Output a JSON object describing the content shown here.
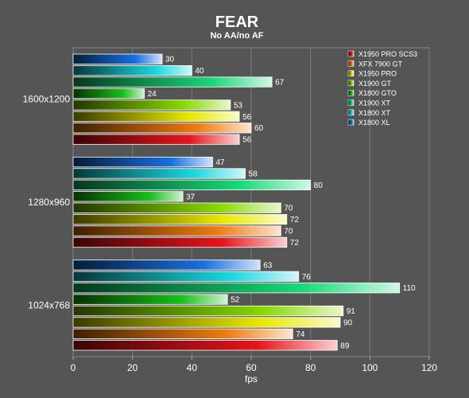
{
  "chart_data": {
    "type": "bar",
    "orientation": "horizontal",
    "title": "FEAR",
    "subtitle": "No AA/no AF",
    "xlabel": "fps",
    "ylabel": "",
    "xlim": [
      0,
      120
    ],
    "xticks": [
      0,
      20,
      40,
      60,
      80,
      100,
      120
    ],
    "grid": true,
    "legend_position": "top-right",
    "categories": [
      "1600x1200",
      "1280x960",
      "1024x768"
    ],
    "series": [
      {
        "name": "X1950 PRO SCS3",
        "color": "#e8141c",
        "values": [
          56,
          72,
          89
        ]
      },
      {
        "name": "XFX 7900 GT",
        "color": "#f07c10",
        "values": [
          60,
          70,
          74
        ]
      },
      {
        "name": "X1950 PRO",
        "color": "#e8e800",
        "values": [
          56,
          72,
          90
        ]
      },
      {
        "name": "X1900 GT",
        "color": "#88d800",
        "values": [
          53,
          70,
          91
        ]
      },
      {
        "name": "X1800 GTO",
        "color": "#18c018",
        "values": [
          24,
          37,
          52
        ]
      },
      {
        "name": "X1900 XT",
        "color": "#18d878",
        "values": [
          67,
          80,
          110
        ]
      },
      {
        "name": "X1800 XT",
        "color": "#18d8e0",
        "values": [
          40,
          58,
          76
        ]
      },
      {
        "name": "X1800 XL",
        "color": "#1870e0",
        "values": [
          30,
          47,
          63
        ]
      }
    ]
  }
}
